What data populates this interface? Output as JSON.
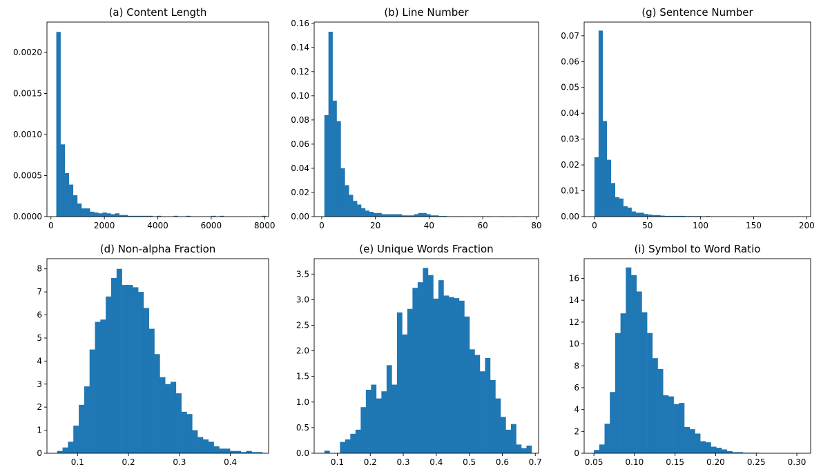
{
  "colors": {
    "bar": "#1f77b4",
    "axes": "#000000",
    "background": "#ffffff"
  },
  "chart_data": [
    {
      "type": "bar",
      "title": "(a) Content Length",
      "xlim": [
        -150,
        8150
      ],
      "ylim": [
        0,
        0.00237
      ],
      "xticks": [
        0,
        2000,
        4000,
        6000,
        8000
      ],
      "xtick_labels": [
        "0",
        "2000",
        "4000",
        "6000",
        "8000"
      ],
      "yticks": [
        0,
        0.0005,
        0.001,
        0.0015,
        0.002
      ],
      "ytick_labels": [
        "0.0000",
        "0.0005",
        "0.0010",
        "0.0015",
        "0.0020"
      ],
      "bin_start": 200,
      "bin_width": 157,
      "values": [
        0.00225,
        0.00088,
        0.00053,
        0.00039,
        0.00026,
        0.00016,
        0.0001,
        0.0001,
        6e-05,
        5e-05,
        4e-05,
        5e-05,
        4e-05,
        3e-05,
        4e-05,
        2e-05,
        2e-05,
        1e-05,
        1e-05,
        1e-05,
        1e-05,
        1e-05,
        1e-05,
        0,
        1e-05,
        0,
        0,
        0,
        1e-05,
        0,
        0,
        1e-05,
        0,
        0,
        0,
        0,
        0,
        1e-05,
        0,
        1e-05,
        0,
        0,
        0,
        0,
        0,
        0,
        0,
        0,
        0,
        1e-05
      ],
      "grid": false
    },
    {
      "type": "bar",
      "title": "(b) Line Number",
      "xlim": [
        -2.8,
        80.8
      ],
      "ylim": [
        0,
        0.161
      ],
      "xticks": [
        0,
        20,
        40,
        60,
        80
      ],
      "xtick_labels": [
        "0",
        "20",
        "40",
        "60",
        "80"
      ],
      "yticks": [
        0,
        0.02,
        0.04,
        0.06,
        0.08,
        0.1,
        0.12,
        0.14,
        0.16
      ],
      "ytick_labels": [
        "0.00",
        "0.02",
        "0.04",
        "0.06",
        "0.08",
        "0.10",
        "0.12",
        "0.14",
        "0.16"
      ],
      "bin_start": 1,
      "bin_width": 1.52,
      "values": [
        0.084,
        0.153,
        0.096,
        0.079,
        0.04,
        0.026,
        0.018,
        0.013,
        0.01,
        0.007,
        0.005,
        0.004,
        0.003,
        0.003,
        0.002,
        0.002,
        0.002,
        0.002,
        0.002,
        0.001,
        0.001,
        0.001,
        0.002,
        0.003,
        0.003,
        0.002,
        0.001,
        0.001,
        0.0005,
        0.0005,
        0.0003,
        0.0003,
        0.0003,
        0.0003,
        0.0003,
        0,
        0.0003,
        0.0003,
        0.0003,
        0.0003,
        0.0003,
        0,
        0,
        0.0003,
        0,
        0,
        0.0003,
        0,
        0,
        0.0003
      ],
      "grid": false
    },
    {
      "type": "bar",
      "title": "(g) Sentence Number",
      "xlim": [
        -9.7,
        203.7
      ],
      "ylim": [
        0,
        0.0753
      ],
      "xticks": [
        0,
        50,
        100,
        150,
        200
      ],
      "xtick_labels": [
        "0",
        "50",
        "100",
        "150",
        "200"
      ],
      "yticks": [
        0,
        0.01,
        0.02,
        0.03,
        0.04,
        0.05,
        0.06,
        0.07
      ],
      "ytick_labels": [
        "0.00",
        "0.01",
        "0.02",
        "0.03",
        "0.04",
        "0.05",
        "0.06",
        "0.07"
      ],
      "bin_start": 0,
      "bin_width": 3.88,
      "values": [
        0.023,
        0.072,
        0.037,
        0.022,
        0.013,
        0.0075,
        0.007,
        0.004,
        0.0035,
        0.002,
        0.0015,
        0.0015,
        0.001,
        0.0008,
        0.0006,
        0.0006,
        0.0004,
        0.0003,
        0.0003,
        0.0003,
        0.0003,
        0.0003,
        0.0002,
        0.0002,
        0.0002,
        0.0002,
        0.0001,
        0.0002,
        0.0001,
        0.0001,
        0.0001,
        0.0001,
        0.0001,
        0.0001,
        0.0001,
        0,
        0.0001,
        0,
        0.0001,
        0,
        0,
        0.0001,
        0,
        0,
        0,
        0,
        0,
        0.0001,
        0,
        0.0001
      ],
      "grid": false
    },
    {
      "type": "bar",
      "title": "(d) Non-alpha Fraction",
      "xlim": [
        0.04,
        0.475
      ],
      "ylim": [
        0,
        8.44
      ],
      "xticks": [
        0.1,
        0.2,
        0.3,
        0.4
      ],
      "xtick_labels": [
        "0.1",
        "0.2",
        "0.3",
        "0.4"
      ],
      "yticks": [
        0,
        1,
        2,
        3,
        4,
        5,
        6,
        7,
        8
      ],
      "ytick_labels": [
        "0",
        "1",
        "2",
        "3",
        "4",
        "5",
        "6",
        "7",
        "8"
      ],
      "bin_start": 0.06,
      "bin_width": 0.0106,
      "values": [
        0.1,
        0.25,
        0.5,
        1.2,
        2.1,
        2.9,
        4.5,
        5.7,
        5.8,
        6.8,
        7.6,
        8.0,
        7.3,
        7.3,
        7.2,
        7.0,
        6.3,
        5.4,
        4.3,
        3.3,
        3.0,
        3.1,
        2.6,
        1.8,
        1.7,
        1.0,
        0.7,
        0.6,
        0.5,
        0.3,
        0.2,
        0.2,
        0.1,
        0.1,
        0.05,
        0.1,
        0.05,
        0.05
      ],
      "grid": false
    },
    {
      "type": "bar",
      "title": "(e) Unique Words Fraction",
      "xlim": [
        0.03,
        0.71
      ],
      "ylim": [
        0,
        3.8
      ],
      "xticks": [
        0.1,
        0.2,
        0.3,
        0.4,
        0.5,
        0.6,
        0.7
      ],
      "xtick_labels": [
        "0.1",
        "0.2",
        "0.3",
        "0.4",
        "0.5",
        "0.6",
        "0.7"
      ],
      "yticks": [
        0,
        0.5,
        1,
        1.5,
        2,
        2.5,
        3,
        3.5
      ],
      "ytick_labels": [
        "0.0",
        "0.5",
        "1.0",
        "1.5",
        "2.0",
        "2.5",
        "3.0",
        "3.5"
      ],
      "bin_start": 0.061,
      "bin_width": 0.0157,
      "values": [
        0.05,
        0,
        0,
        0.22,
        0.27,
        0.38,
        0.46,
        0.9,
        1.24,
        1.34,
        1.07,
        1.21,
        1.72,
        1.34,
        2.75,
        2.32,
        2.82,
        3.23,
        3.34,
        3.62,
        3.48,
        3.02,
        3.38,
        3.08,
        3.05,
        3.03,
        2.98,
        2.67,
        2.03,
        1.92,
        1.6,
        1.86,
        1.43,
        1.07,
        0.71,
        0.46,
        0.57,
        0.17,
        0.1,
        0.15
      ],
      "grid": false
    },
    {
      "type": "bar",
      "title": "(i) Symbol to Word Ratio",
      "xlim": [
        0.038,
        0.317
      ],
      "ylim": [
        0,
        17.8
      ],
      "xticks": [
        0.05,
        0.1,
        0.15,
        0.2,
        0.25,
        0.3
      ],
      "xtick_labels": [
        "0.05",
        "0.10",
        "0.15",
        "0.20",
        "0.25",
        "0.30"
      ],
      "yticks": [
        0,
        2,
        4,
        6,
        8,
        10,
        12,
        14,
        16
      ],
      "ytick_labels": [
        "0",
        "2",
        "4",
        "6",
        "8",
        "10",
        "12",
        "14",
        "16"
      ],
      "bin_start": 0.05,
      "bin_width": 0.00655,
      "values": [
        0.3,
        0.8,
        2.7,
        5.6,
        11.0,
        12.8,
        17.0,
        16.3,
        14.8,
        12.9,
        11.0,
        8.7,
        7.7,
        5.3,
        5.2,
        4.5,
        4.6,
        2.4,
        2.2,
        1.8,
        1.1,
        1.0,
        0.6,
        0.5,
        0.35,
        0.2,
        0.1,
        0.1,
        0.05,
        0.05,
        0.05
      ],
      "grid": false
    }
  ]
}
